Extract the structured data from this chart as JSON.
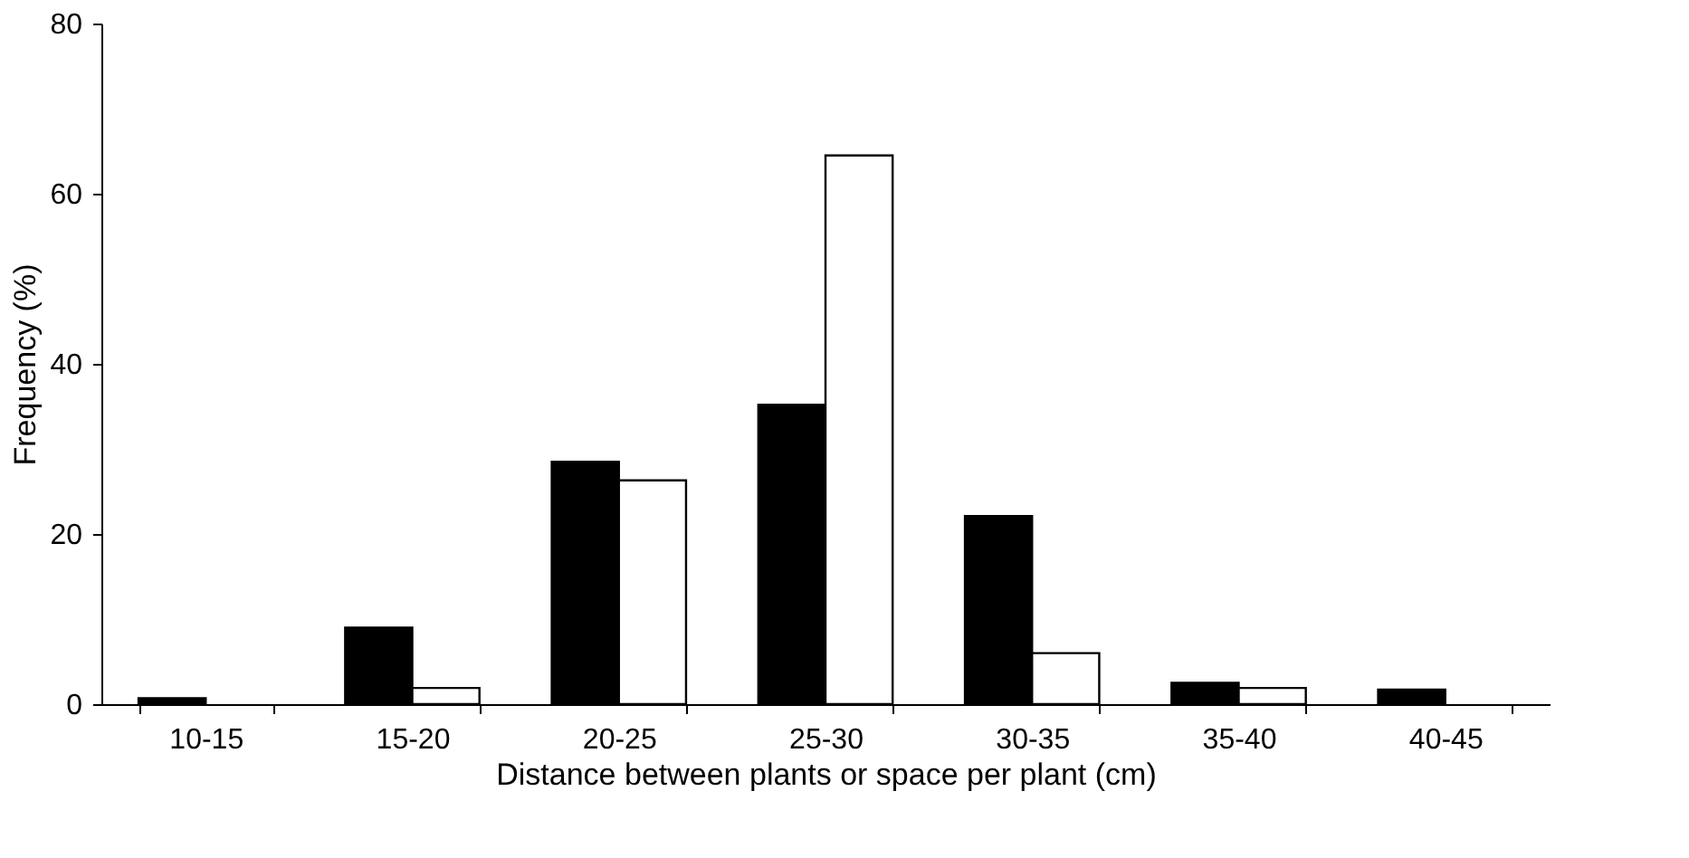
{
  "chart_data": {
    "type": "bar",
    "xlabel": "Distance between plants or space per plant (cm)",
    "ylabel": "Frequency (%)",
    "categories": [
      "10-15",
      "15-20",
      "20-25",
      "25-30",
      "30-35",
      "35-40",
      "40-45"
    ],
    "series": [
      {
        "color": "#000000",
        "values": [
          0.7,
          9,
          28.5,
          35.2,
          22.1,
          2.5,
          1.7
        ]
      },
      {
        "color": "#ffffff",
        "values": [
          0,
          1.9,
          26.3,
          64.5,
          6,
          1.9,
          0
        ]
      }
    ],
    "ylim": [
      0,
      80
    ],
    "yticks": [
      0,
      20,
      40,
      60,
      80
    ],
    "grid": false,
    "legend": false
  }
}
